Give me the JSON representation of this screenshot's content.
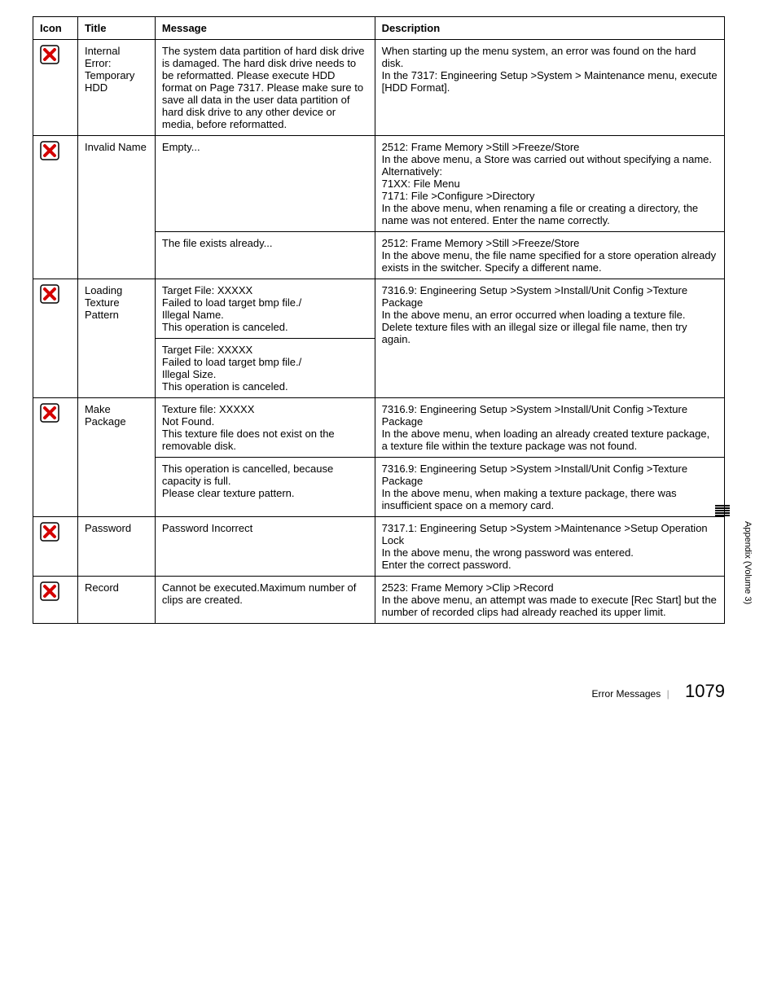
{
  "headers": {
    "icon": "Icon",
    "title": "Title",
    "message": "Message",
    "description": "Description"
  },
  "rows": [
    {
      "title": "Internal Error: Temporary HDD",
      "cells": [
        {
          "message": "The system data partition of hard disk drive is damaged. The hard disk drive needs to be reformatted. Please execute HDD format on Page 7317. Please make sure to save all data in the user data partition of hard disk drive to any other device or media, before reformatted.",
          "description": "When starting up the menu system, an error was found on the hard disk.\nIn the 7317: Engineering Setup >System > Maintenance menu, execute [HDD Format]."
        }
      ]
    },
    {
      "title": "Invalid Name",
      "cells": [
        {
          "message": "Empty...",
          "description": "2512: Frame Memory >Still >Freeze/Store\nIn the above menu, a Store was carried out without specifying a name.\nAlternatively:\n71XX: File Menu\n7171: File >Configure >Directory\nIn the above menu, when renaming a file or creating a directory, the name was not entered. Enter the name correctly."
        },
        {
          "message": "The file exists already...",
          "description": "2512: Frame Memory >Still >Freeze/Store\nIn the above menu, the file name specified for a store operation already exists in the switcher. Specify a different name."
        }
      ]
    },
    {
      "title": "Loading Texture Pattern",
      "cells": [
        {
          "message": "Target File: XXXXX\nFailed to load target bmp file./\nIllegal Name.\nThis operation is canceled.",
          "description": "7316.9: Engineering Setup >System >Install/Unit Config >Texture Package\nIn the above menu, an error occurred when loading a texture file. Delete texture files with an illegal size or illegal file name, then try again.",
          "descRowspan": 2
        },
        {
          "message": "Target File: XXXXX\nFailed to load target bmp file./\nIllegal Size.\nThis operation is canceled."
        }
      ]
    },
    {
      "title": "Make Package",
      "cells": [
        {
          "message": "Texture file: XXXXX\nNot Found.\nThis texture file does not exist on the removable disk.",
          "description": "7316.9: Engineering Setup >System >Install/Unit Config >Texture Package\nIn the above menu, when loading an already created texture package, a texture file within the texture package was not found."
        },
        {
          "message": "This operation is cancelled, because capacity is full.\nPlease clear texture pattern.",
          "description": "7316.9: Engineering Setup >System >Install/Unit Config >Texture Package\nIn the above menu, when making a texture package, there was insufficient space on a memory card."
        }
      ]
    },
    {
      "title": "Password",
      "cells": [
        {
          "message": "Password Incorrect",
          "description": "7317.1: Engineering Setup >System >Maintenance >Setup Operation Lock\nIn the above menu, the wrong password was entered.\nEnter the correct password."
        }
      ]
    },
    {
      "title": "Record",
      "cells": [
        {
          "message": "Cannot be executed.Maximum number of clips are created.",
          "description": "2523: Frame Memory >Clip >Record\nIn the above menu, an attempt was made to execute [Rec Start] but the number of recorded clips had already reached its upper limit."
        }
      ]
    }
  ],
  "side": "Appendix (Volume 3)",
  "footer": {
    "label": "Error Messages",
    "page": "1079"
  },
  "icon_svg_color_bg": "#ffffff",
  "icon_svg_color_border": "#000000",
  "icon_svg_color_x": "#d40000"
}
